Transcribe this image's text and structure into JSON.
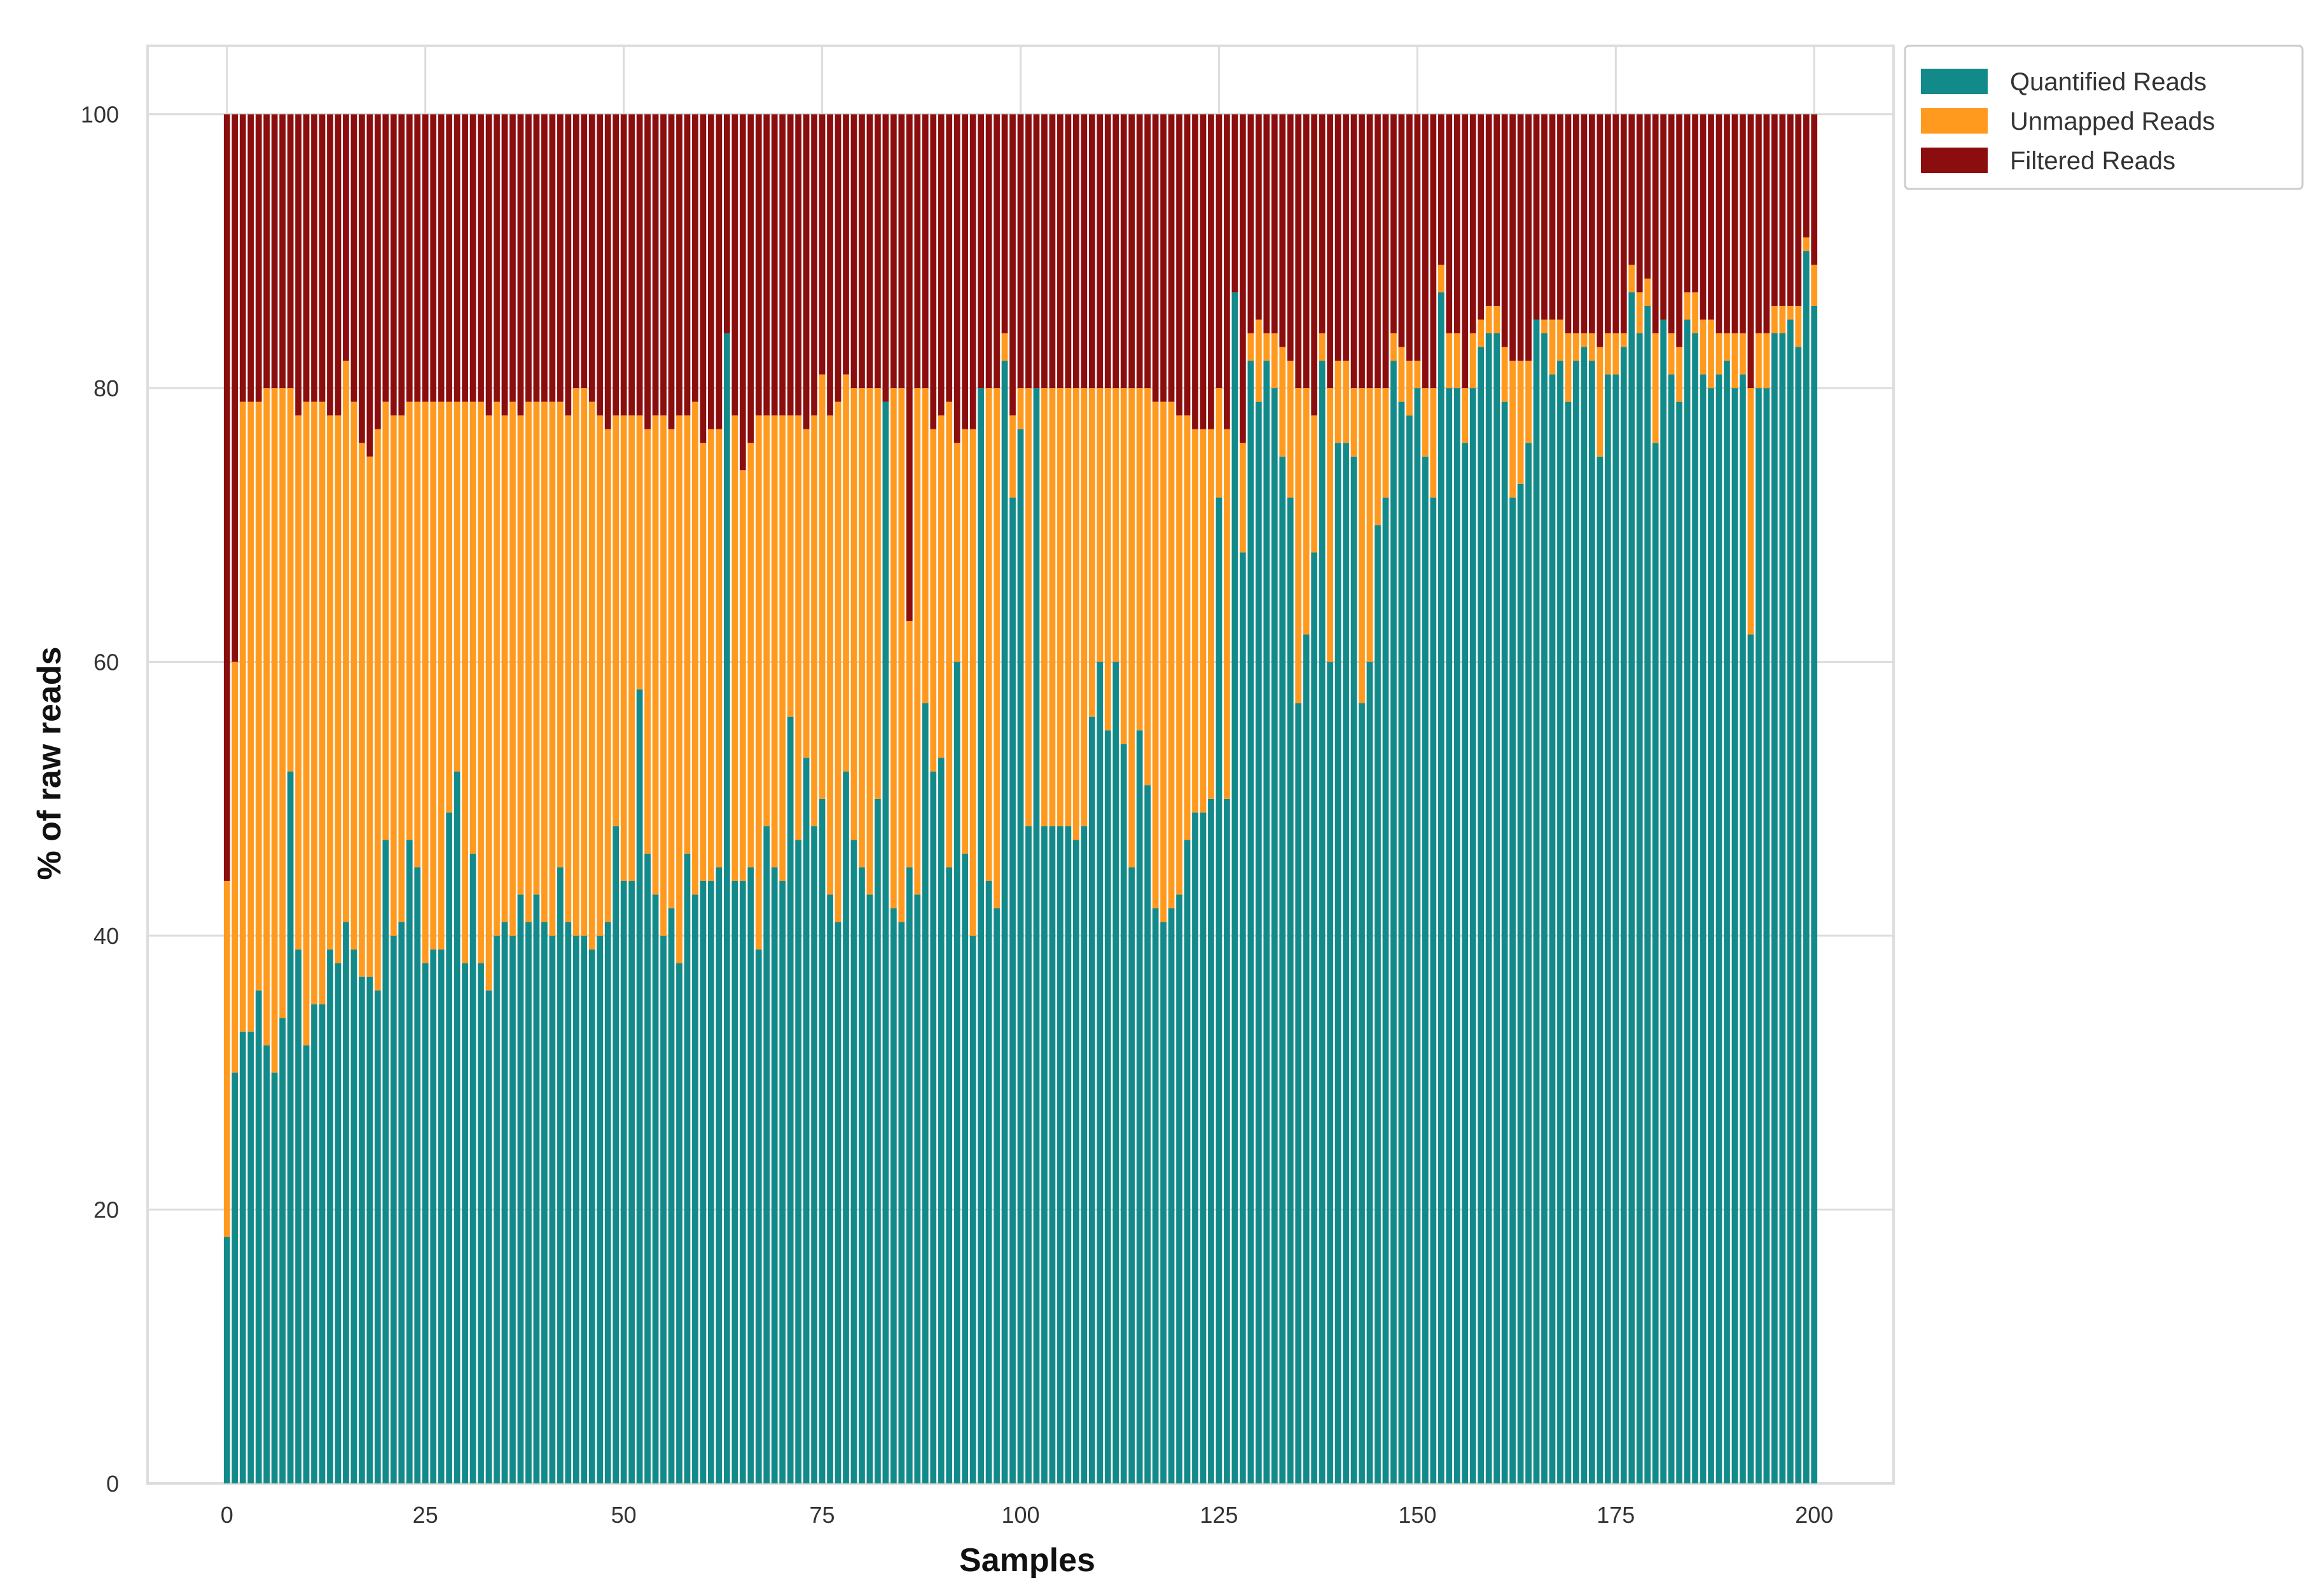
{
  "chart_data": {
    "type": "bar",
    "stacked": true,
    "normalized_percent": true,
    "title": "",
    "xlabel": "Samples",
    "ylabel": "% of raw reads",
    "xlim": [
      -10,
      210
    ],
    "ylim": [
      0,
      105
    ],
    "xticks": [
      0,
      25,
      50,
      75,
      100,
      125,
      150,
      175,
      200
    ],
    "xtick_labels": [
      "0",
      "25",
      "50",
      "75",
      "100",
      "125",
      "150",
      "175",
      "200"
    ],
    "yticks": [
      0,
      20,
      40,
      60,
      80,
      100
    ],
    "ytick_labels": [
      "0",
      "20",
      "40",
      "60",
      "80",
      "100"
    ],
    "grid": true,
    "legend_position": "outside-top-right",
    "categories_note": "201 samples indexed 0-200; Filtered Reads = 100 - Quantified - Unmapped",
    "colors": {
      "Quantified Reads": "#138a8a",
      "Unmapped Reads": "#ff9a1f",
      "Filtered Reads": "#8b0d0d"
    },
    "series": [
      {
        "name": "Quantified Reads",
        "values": [
          18,
          30,
          33,
          33,
          36,
          32,
          30,
          34,
          52,
          39,
          32,
          35,
          35,
          39,
          38,
          41,
          39,
          37,
          37,
          36,
          47,
          40,
          41,
          47,
          45,
          38,
          39,
          39,
          49,
          52,
          38,
          46,
          38,
          36,
          40,
          41,
          40,
          43,
          41,
          43,
          41,
          40,
          45,
          41,
          40,
          40,
          39,
          40,
          41,
          48,
          44,
          44,
          58,
          46,
          43,
          40,
          42,
          38,
          46,
          43,
          44,
          44,
          45,
          84,
          44,
          44,
          45,
          39,
          48,
          45,
          44,
          56,
          47,
          53,
          48,
          50,
          43,
          41,
          52,
          47,
          45,
          43,
          50,
          79,
          42,
          41,
          45,
          43,
          57,
          52,
          53,
          45,
          60,
          46,
          40,
          80,
          44,
          42,
          82,
          72,
          77,
          48,
          80,
          48,
          48,
          48,
          48,
          47,
          48,
          56,
          60,
          55,
          60,
          54,
          45,
          55,
          51,
          42,
          41,
          42,
          43,
          47,
          49,
          49,
          50,
          72,
          50,
          87,
          68,
          82,
          79,
          82,
          80,
          75,
          72,
          57,
          62,
          68,
          82,
          60,
          76,
          76,
          75,
          57,
          60,
          70,
          72,
          82,
          79,
          78,
          80,
          75,
          72,
          87,
          80,
          80,
          76,
          80,
          83,
          84,
          84,
          79,
          72,
          73,
          76,
          85,
          84,
          81,
          82,
          79,
          82,
          83,
          82,
          75,
          81,
          81,
          83,
          87,
          84,
          86,
          76,
          85,
          81,
          79,
          85,
          84,
          81,
          80,
          81,
          82,
          80,
          81,
          62,
          80,
          80,
          84,
          84,
          85,
          83,
          90,
          86
        ],
        "series_values_are_percent_of_raw_reads": true
      },
      {
        "name": "Unmapped Reads",
        "values": [
          26,
          30,
          46,
          46,
          43,
          48,
          50,
          46,
          28,
          39,
          47,
          44,
          44,
          39,
          40,
          41,
          40,
          39,
          38,
          41,
          32,
          38,
          37,
          32,
          34,
          41,
          40,
          40,
          30,
          27,
          41,
          33,
          41,
          42,
          39,
          37,
          39,
          35,
          38,
          36,
          38,
          39,
          34,
          37,
          40,
          40,
          40,
          38,
          36,
          30,
          34,
          34,
          20,
          31,
          35,
          38,
          35,
          40,
          32,
          36,
          32,
          33,
          32,
          0,
          34,
          30,
          31,
          39,
          30,
          33,
          34,
          22,
          31,
          24,
          30,
          31,
          35,
          38,
          29,
          33,
          35,
          37,
          30,
          0,
          38,
          39,
          18,
          37,
          23,
          25,
          25,
          34,
          16,
          31,
          37,
          0,
          36,
          38,
          2,
          6,
          3,
          32,
          0,
          32,
          32,
          32,
          32,
          33,
          32,
          24,
          20,
          25,
          20,
          26,
          35,
          25,
          29,
          37,
          38,
          37,
          35,
          31,
          28,
          28,
          27,
          8,
          27,
          0,
          8,
          2,
          6,
          2,
          4,
          8,
          10,
          23,
          18,
          10,
          2,
          20,
          6,
          6,
          5,
          23,
          20,
          10,
          8,
          2,
          4,
          4,
          2,
          5,
          8,
          2,
          4,
          4,
          4,
          4,
          2,
          2,
          2,
          4,
          10,
          9,
          6,
          0,
          1,
          4,
          3,
          5,
          2,
          1,
          2,
          8,
          3,
          3,
          1,
          2,
          3,
          2,
          8,
          0,
          3,
          4,
          2,
          3,
          4,
          5,
          3,
          2,
          4,
          3,
          18,
          4,
          4,
          2,
          2,
          1,
          3,
          1,
          3
        ]
      },
      {
        "name": "Filtered Reads",
        "values": "computed: 100 - Quantified - Unmapped per sample"
      }
    ],
    "legend": [
      "Quantified Reads",
      "Unmapped Reads",
      "Filtered Reads"
    ]
  }
}
